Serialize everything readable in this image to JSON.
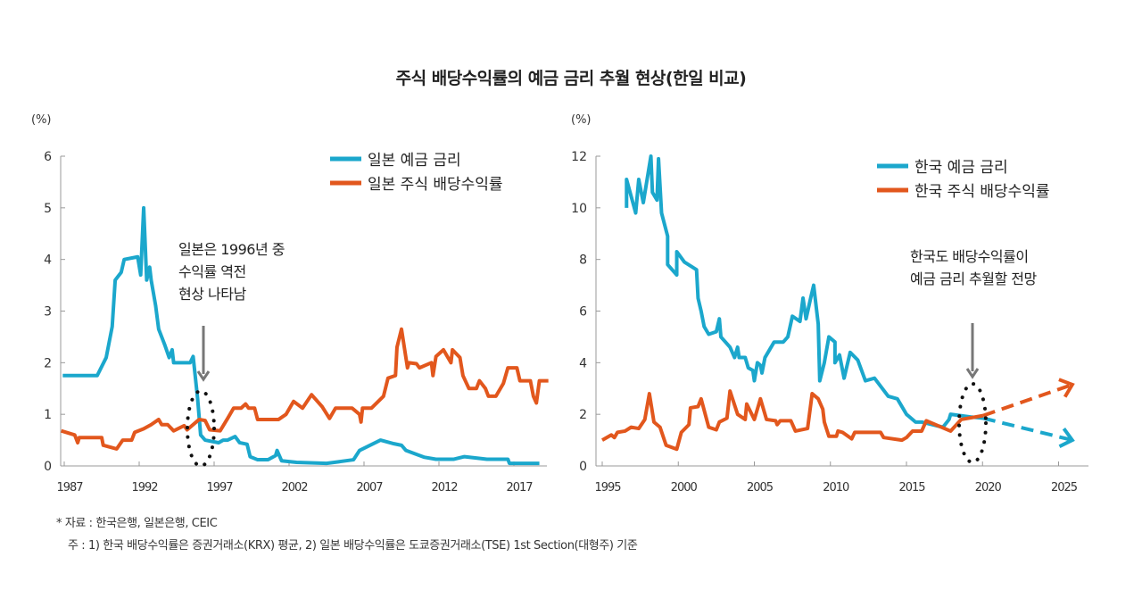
{
  "title": "주식 배당수익률의 예금 금리 추월 현상(한일 비교)",
  "colors": {
    "deposit": "#1ba7cc",
    "dividend": "#e2571d",
    "arrow": "#777777"
  },
  "footnotes": {
    "source": "* 자료 : 한국은행, 일본은행, CEIC",
    "note": "주 : 1) 한국 배당수익률은 증권거래소(KRX) 평균, 2) 일본 배당수익률은 도쿄증권거래소(TSE) 1st Section(대형주) 기준"
  },
  "chart_data": [
    {
      "type": "line",
      "ylabel": "(%)",
      "xlim": [
        1986.8,
        2019.7
      ],
      "ylim": [
        0,
        6
      ],
      "xticks": [
        1987,
        1992,
        1997,
        2002,
        2007,
        2012,
        2017
      ],
      "yticks": [
        0,
        1,
        2,
        3,
        4,
        5,
        6
      ],
      "legend_position": "top-right",
      "annotation": [
        "일본은 1996년 중",
        "수익률 역전",
        "현상 나타남"
      ],
      "series": [
        {
          "name": "일본 예금 금리",
          "color_key": "deposit",
          "points": [
            [
              1986.9,
              1.75
            ],
            [
              1989.2,
              1.75
            ],
            [
              1989.8,
              2.1
            ],
            [
              1990.2,
              2.7
            ],
            [
              1990.4,
              3.6
            ],
            [
              1990.8,
              3.75
            ],
            [
              1991.0,
              4.0
            ],
            [
              1991.9,
              4.05
            ],
            [
              1992.1,
              3.7
            ],
            [
              1992.3,
              5.0
            ],
            [
              1992.5,
              3.6
            ],
            [
              1992.7,
              3.85
            ],
            [
              1992.8,
              3.6
            ],
            [
              1993.1,
              3.1
            ],
            [
              1993.3,
              2.65
            ],
            [
              1993.7,
              2.35
            ],
            [
              1994.0,
              2.1
            ],
            [
              1994.2,
              2.25
            ],
            [
              1994.3,
              2.0
            ],
            [
              1995.4,
              2.0
            ],
            [
              1995.6,
              2.12
            ],
            [
              1995.9,
              1.3
            ],
            [
              1996.1,
              0.6
            ],
            [
              1996.4,
              0.5
            ],
            [
              1997.3,
              0.45
            ],
            [
              1997.6,
              0.5
            ],
            [
              1997.9,
              0.5
            ],
            [
              1998.4,
              0.57
            ],
            [
              1998.7,
              0.45
            ],
            [
              1999.2,
              0.42
            ],
            [
              1999.4,
              0.18
            ],
            [
              1999.9,
              0.12
            ],
            [
              2000.6,
              0.12
            ],
            [
              2001.1,
              0.2
            ],
            [
              2001.2,
              0.3
            ],
            [
              2001.5,
              0.1
            ],
            [
              2002.5,
              0.07
            ],
            [
              2004.5,
              0.05
            ],
            [
              2005.3,
              0.08
            ],
            [
              2006.3,
              0.12
            ],
            [
              2006.7,
              0.3
            ],
            [
              2008.1,
              0.5
            ],
            [
              2009.0,
              0.43
            ],
            [
              2009.5,
              0.4
            ],
            [
              2009.8,
              0.3
            ],
            [
              2011.0,
              0.17
            ],
            [
              2011.8,
              0.13
            ],
            [
              2013.0,
              0.13
            ],
            [
              2013.7,
              0.18
            ],
            [
              2015.2,
              0.13
            ],
            [
              2016.6,
              0.13
            ],
            [
              2016.7,
              0.05
            ],
            [
              2018.7,
              0.05
            ]
          ]
        },
        {
          "name": "일본 주식 배당수익률",
          "color_key": "dividend",
          "points": [
            [
              1986.8,
              0.68
            ],
            [
              1987.7,
              0.6
            ],
            [
              1987.9,
              0.45
            ],
            [
              1988.0,
              0.55
            ],
            [
              1989.5,
              0.55
            ],
            [
              1989.6,
              0.4
            ],
            [
              1990.5,
              0.33
            ],
            [
              1990.9,
              0.5
            ],
            [
              1991.5,
              0.5
            ],
            [
              1991.7,
              0.65
            ],
            [
              1992.3,
              0.72
            ],
            [
              1992.8,
              0.8
            ],
            [
              1993.3,
              0.9
            ],
            [
              1993.5,
              0.8
            ],
            [
              1993.9,
              0.8
            ],
            [
              1994.3,
              0.68
            ],
            [
              1995.0,
              0.78
            ],
            [
              1995.2,
              0.7
            ],
            [
              1996.0,
              0.9
            ],
            [
              1996.4,
              0.88
            ],
            [
              1996.7,
              0.7
            ],
            [
              1997.4,
              0.68
            ],
            [
              1997.9,
              0.92
            ],
            [
              1998.3,
              1.12
            ],
            [
              1998.8,
              1.12
            ],
            [
              1999.1,
              1.2
            ],
            [
              1999.3,
              1.12
            ],
            [
              1999.7,
              1.12
            ],
            [
              1999.9,
              0.9
            ],
            [
              2001.3,
              0.9
            ],
            [
              2001.8,
              1.0
            ],
            [
              2002.3,
              1.25
            ],
            [
              2002.9,
              1.12
            ],
            [
              2003.5,
              1.38
            ],
            [
              2004.2,
              1.15
            ],
            [
              2004.7,
              0.92
            ],
            [
              2005.1,
              1.12
            ],
            [
              2006.2,
              1.12
            ],
            [
              2006.7,
              1.0
            ],
            [
              2006.8,
              0.85
            ],
            [
              2006.9,
              1.12
            ],
            [
              2007.5,
              1.12
            ],
            [
              2008.3,
              1.35
            ],
            [
              2008.6,
              1.7
            ],
            [
              2009.1,
              1.75
            ],
            [
              2009.2,
              2.3
            ],
            [
              2009.5,
              2.65
            ],
            [
              2009.9,
              1.9
            ],
            [
              2010.0,
              2.0
            ],
            [
              2010.5,
              1.98
            ],
            [
              2010.7,
              1.9
            ],
            [
              2011.5,
              2.0
            ],
            [
              2011.6,
              1.75
            ],
            [
              2011.8,
              2.12
            ],
            [
              2012.3,
              2.25
            ],
            [
              2012.8,
              2.0
            ],
            [
              2012.9,
              2.25
            ],
            [
              2013.4,
              2.1
            ],
            [
              2013.6,
              1.75
            ],
            [
              2014.0,
              1.5
            ],
            [
              2014.5,
              1.5
            ],
            [
              2014.7,
              1.65
            ],
            [
              2015.1,
              1.5
            ],
            [
              2015.3,
              1.35
            ],
            [
              2015.8,
              1.35
            ],
            [
              2016.3,
              1.6
            ],
            [
              2016.6,
              1.9
            ],
            [
              2017.2,
              1.9
            ],
            [
              2017.4,
              1.65
            ],
            [
              2018.1,
              1.65
            ],
            [
              2018.3,
              1.35
            ],
            [
              2018.5,
              1.22
            ],
            [
              2018.7,
              1.65
            ],
            [
              2019.3,
              1.65
            ]
          ]
        }
      ]
    },
    {
      "type": "line",
      "ylabel": "(%)",
      "xlim": [
        1994.6,
        2026.8
      ],
      "ylim": [
        0,
        12
      ],
      "xticks": [
        1995,
        2000,
        2005,
        2010,
        2015,
        2020,
        2025
      ],
      "yticks": [
        0,
        2,
        4,
        6,
        8,
        10,
        12
      ],
      "legend_position": "top-right",
      "annotation": [
        "한국도 배당수익률이",
        "예금 금리 추월할 전망"
      ],
      "series": [
        {
          "name": "한국 예금 금리",
          "color_key": "deposit",
          "forecast": [
            [
              2020.04,
              1.85
            ],
            [
              2025.9,
              1.0
            ]
          ],
          "points": [
            [
              1996.6,
              10.0
            ],
            [
              1996.6,
              11.1
            ],
            [
              1997.2,
              9.8
            ],
            [
              1997.4,
              11.1
            ],
            [
              1997.7,
              10.2
            ],
            [
              1998.2,
              12.0
            ],
            [
              1998.3,
              10.6
            ],
            [
              1998.6,
              10.3
            ],
            [
              1998.7,
              11.9
            ],
            [
              1998.9,
              9.8
            ],
            [
              1999.3,
              8.9
            ],
            [
              1999.3,
              7.8
            ],
            [
              1999.9,
              7.4
            ],
            [
              1999.9,
              8.3
            ],
            [
              2000.4,
              7.9
            ],
            [
              2001.2,
              7.6
            ],
            [
              2001.3,
              6.5
            ],
            [
              2001.5,
              6.0
            ],
            [
              2001.7,
              5.4
            ],
            [
              2002.0,
              5.1
            ],
            [
              2002.5,
              5.2
            ],
            [
              2002.7,
              5.7
            ],
            [
              2002.8,
              5.0
            ],
            [
              2003.4,
              4.6
            ],
            [
              2003.7,
              4.2
            ],
            [
              2003.9,
              4.6
            ],
            [
              2004.0,
              4.2
            ],
            [
              2004.4,
              4.2
            ],
            [
              2004.6,
              3.8
            ],
            [
              2004.9,
              3.7
            ],
            [
              2005.0,
              3.3
            ],
            [
              2005.2,
              4.0
            ],
            [
              2005.4,
              3.9
            ],
            [
              2005.5,
              3.6
            ],
            [
              2005.7,
              4.2
            ],
            [
              2006.3,
              4.8
            ],
            [
              2006.9,
              4.8
            ],
            [
              2007.2,
              5.0
            ],
            [
              2007.5,
              5.8
            ],
            [
              2008.0,
              5.6
            ],
            [
              2008.2,
              6.5
            ],
            [
              2008.4,
              5.7
            ],
            [
              2008.7,
              6.5
            ],
            [
              2008.9,
              7.0
            ],
            [
              2009.2,
              5.5
            ],
            [
              2009.3,
              3.3
            ],
            [
              2009.6,
              4.0
            ],
            [
              2009.9,
              5.0
            ],
            [
              2010.3,
              4.8
            ],
            [
              2010.3,
              4.0
            ],
            [
              2010.6,
              4.3
            ],
            [
              2010.9,
              3.4
            ],
            [
              2011.3,
              4.4
            ],
            [
              2011.8,
              4.1
            ],
            [
              2012.3,
              3.3
            ],
            [
              2012.9,
              3.4
            ],
            [
              2013.8,
              2.7
            ],
            [
              2014.4,
              2.6
            ],
            [
              2015.0,
              2.0
            ],
            [
              2015.6,
              1.7
            ],
            [
              2016.0,
              1.7
            ],
            [
              2017.4,
              1.5
            ],
            [
              2017.8,
              1.8
            ],
            [
              2017.9,
              2.0
            ],
            [
              2019.2,
              1.9
            ],
            [
              2020.04,
              1.85
            ]
          ]
        },
        {
          "name": "한국 주식 배당수익률",
          "color_key": "dividend",
          "forecast": [
            [
              2020.04,
              1.95
            ],
            [
              2025.9,
              3.15
            ]
          ],
          "points": [
            [
              1995.0,
              1.0
            ],
            [
              1995.6,
              1.2
            ],
            [
              1995.8,
              1.1
            ],
            [
              1996.0,
              1.3
            ],
            [
              1996.5,
              1.35
            ],
            [
              1996.9,
              1.5
            ],
            [
              1997.4,
              1.45
            ],
            [
              1997.8,
              1.8
            ],
            [
              1998.1,
              2.8
            ],
            [
              1998.4,
              1.7
            ],
            [
              1998.8,
              1.5
            ],
            [
              1999.2,
              0.8
            ],
            [
              1999.9,
              0.65
            ],
            [
              2000.2,
              1.3
            ],
            [
              2000.7,
              1.6
            ],
            [
              2000.8,
              2.25
            ],
            [
              2001.3,
              2.3
            ],
            [
              2001.5,
              2.6
            ],
            [
              2002.0,
              1.5
            ],
            [
              2002.5,
              1.4
            ],
            [
              2002.7,
              1.7
            ],
            [
              2003.2,
              1.85
            ],
            [
              2003.4,
              2.9
            ],
            [
              2003.9,
              2.0
            ],
            [
              2004.4,
              1.8
            ],
            [
              2004.5,
              2.4
            ],
            [
              2005.0,
              1.8
            ],
            [
              2005.4,
              2.6
            ],
            [
              2005.8,
              1.8
            ],
            [
              2006.4,
              1.75
            ],
            [
              2006.5,
              1.6
            ],
            [
              2006.7,
              1.75
            ],
            [
              2007.4,
              1.75
            ],
            [
              2007.7,
              1.35
            ],
            [
              2008.5,
              1.45
            ],
            [
              2008.8,
              2.8
            ],
            [
              2009.2,
              2.6
            ],
            [
              2009.5,
              2.2
            ],
            [
              2009.6,
              1.7
            ],
            [
              2009.9,
              1.15
            ],
            [
              2010.4,
              1.15
            ],
            [
              2010.5,
              1.35
            ],
            [
              2010.8,
              1.3
            ],
            [
              2011.4,
              1.05
            ],
            [
              2011.6,
              1.3
            ],
            [
              2013.3,
              1.3
            ],
            [
              2013.5,
              1.1
            ],
            [
              2014.7,
              1.0
            ],
            [
              2015.0,
              1.1
            ],
            [
              2015.4,
              1.35
            ],
            [
              2016.0,
              1.35
            ],
            [
              2016.3,
              1.75
            ],
            [
              2017.9,
              1.35
            ],
            [
              2018.6,
              1.8
            ],
            [
              2020.04,
              1.95
            ]
          ]
        }
      ]
    }
  ]
}
